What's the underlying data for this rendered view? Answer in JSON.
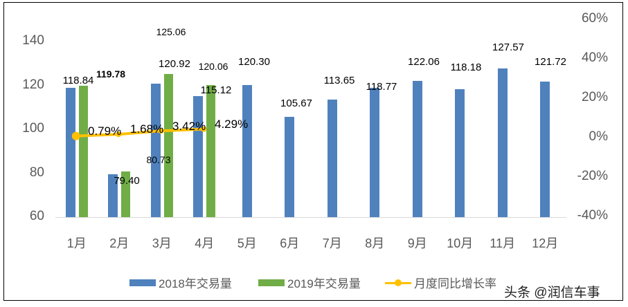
{
  "chart_data": {
    "type": "bar",
    "title": "",
    "xlabel": "",
    "ylabel": "",
    "categories": [
      "1月",
      "2月",
      "3月",
      "4月",
      "5月",
      "6月",
      "7月",
      "8月",
      "9月",
      "10月",
      "11月",
      "12月"
    ],
    "ylim": [
      60,
      140
    ],
    "y_ticks": [
      "140",
      "120",
      "100",
      "80",
      "60"
    ],
    "y2lim": [
      -0.4,
      0.6
    ],
    "y2_ticks": [
      "60%",
      "40%",
      "20%",
      "0%",
      "-20%",
      "-40%"
    ],
    "series": [
      {
        "name": "2018年交易量",
        "type": "bar",
        "axis": "left",
        "color": "#4F81BD",
        "values": [
          118.84,
          79.4,
          120.92,
          115.12,
          120.3,
          105.67,
          113.65,
          118.77,
          122.06,
          118.18,
          127.57,
          121.72
        ],
        "labels": [
          "118.84",
          "79.40",
          "120.92",
          "115.12",
          "120.30",
          "105.67",
          "113.65",
          "118.77",
          "122.06",
          "118.18",
          "127.57",
          "121.72"
        ]
      },
      {
        "name": "2019年交易量",
        "type": "bar",
        "axis": "left",
        "color": "#70AD47",
        "values": [
          119.78,
          80.73,
          125.06,
          120.06
        ],
        "labels": [
          "119.78",
          "80.73",
          "125.06",
          "120.06"
        ]
      },
      {
        "name": "月度同比增长率",
        "type": "line",
        "axis": "right",
        "color": "#FFC000",
        "values": [
          0.0079,
          0.0168,
          0.0342,
          0.0429
        ],
        "labels": [
          "0.79%",
          "1.68%",
          "3.42%",
          "4.29%"
        ]
      }
    ],
    "grid": false,
    "legend_position": "bottom"
  },
  "legend": {
    "items": [
      "2018年交易量",
      "2019年交易量",
      "月度同比增长率"
    ]
  },
  "watermark": "头条 @润信车事",
  "colors": {
    "blue": "#4F81BD",
    "green": "#70AD47",
    "gold": "#FFC000"
  }
}
